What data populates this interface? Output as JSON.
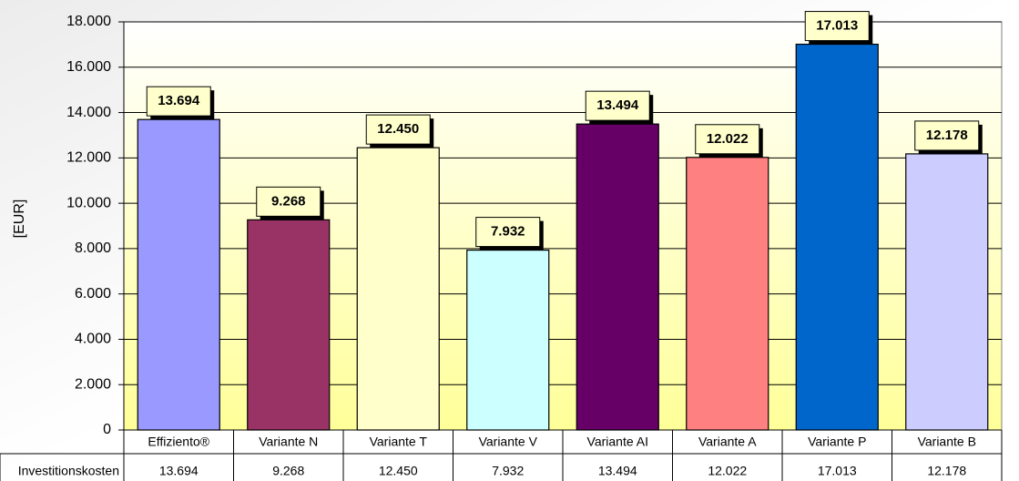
{
  "chart_data": {
    "type": "bar",
    "y_label": "[EUR]",
    "categories": [
      "Effiziento®",
      "Variante N",
      "Variante T",
      "Variante V",
      "Variante AI",
      "Variante A",
      "Variante P",
      "Variante B"
    ],
    "series": [
      {
        "name": "Investitionskosten",
        "colors": [
          "#9999ff",
          "#993366",
          "#ffffcc",
          "#ccffff",
          "#660066",
          "#ff8080",
          "#0066cc",
          "#ccccff"
        ],
        "values": [
          13694,
          9268,
          12450,
          7932,
          13494,
          12022,
          17013,
          12178
        ],
        "value_labels": [
          "13.694",
          "9.268",
          "12.450",
          "7.932",
          "13.494",
          "12.022",
          "17.013",
          "12.178"
        ]
      }
    ],
    "ylim": [
      0,
      18000
    ],
    "yticks": [
      0,
      {
        "value": 2000,
        "label": "2.000"
      },
      {
        "value": 4000,
        "label": "4.000"
      },
      {
        "value": 6000,
        "label": "6.000"
      },
      {
        "value": 8000,
        "label": "8.000"
      },
      {
        "value": 10000,
        "label": "10.000"
      },
      {
        "value": 12000,
        "label": "12.000"
      },
      {
        "value": 14000,
        "label": "14.000"
      },
      {
        "value": 16000,
        "label": "16.000"
      },
      {
        "value": 18000,
        "label": "18.000"
      }
    ],
    "grid": true,
    "data_table": true
  }
}
